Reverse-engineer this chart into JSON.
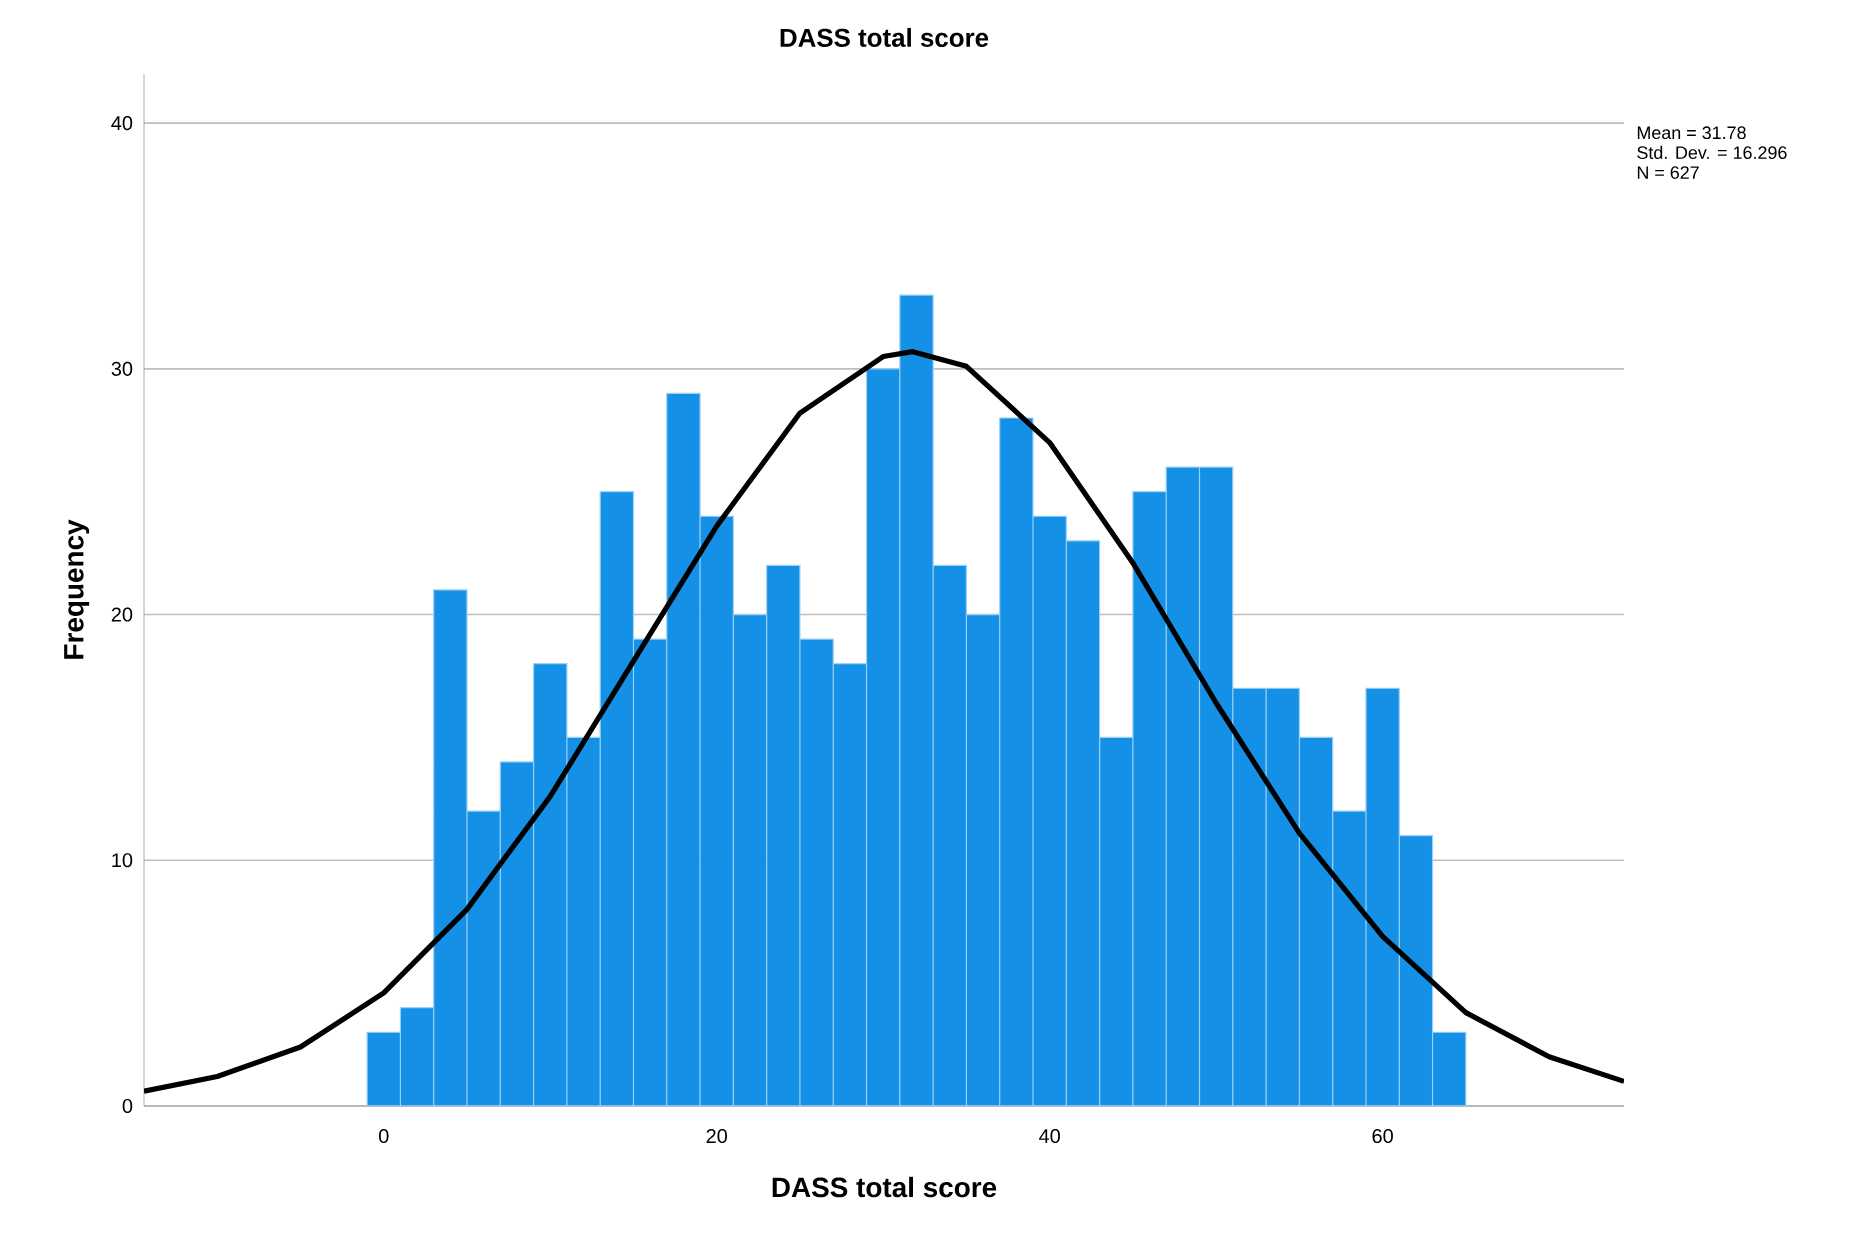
{
  "chart_data": {
    "type": "histogram",
    "title": "DASS total score",
    "xlabel": "DASS total score",
    "ylabel": "Frequency",
    "bins": [
      -1,
      1,
      3,
      5,
      7,
      9,
      11,
      13,
      15,
      17,
      19,
      21,
      23,
      25,
      27,
      29,
      31,
      33,
      35,
      37,
      39,
      41,
      43,
      45,
      47,
      49,
      51,
      53,
      55,
      57,
      59,
      61,
      63,
      65
    ],
    "values": [
      3,
      4,
      21,
      12,
      14,
      18,
      15,
      25,
      19,
      29,
      24,
      20,
      22,
      19,
      18,
      30,
      33,
      22,
      20,
      28,
      24,
      23,
      15,
      25,
      26,
      26,
      17,
      17,
      15,
      12,
      17,
      11,
      3
    ],
    "color": "#1490e6",
    "series": [
      {
        "type": "line",
        "color": "#000000",
        "x": [
          -14.4,
          -10,
          -5,
          0,
          5,
          10,
          15,
          20,
          25,
          30,
          31.78,
          35,
          40,
          45,
          50,
          55,
          60,
          65,
          70,
          74.5
        ],
        "values": [
          0.6,
          1.2,
          2.4,
          4.6,
          8.0,
          12.6,
          18.1,
          23.6,
          28.2,
          30.5,
          30.7,
          30.1,
          27.0,
          22.1,
          16.4,
          11.1,
          6.9,
          3.8,
          2.0,
          1.0
        ]
      }
    ],
    "xlim": [
      -14.4,
      74.5
    ],
    "ylim": [
      0,
      42
    ],
    "xticks": [
      0,
      20,
      40,
      60
    ],
    "yticks": [
      0,
      10,
      20,
      30,
      40
    ],
    "grid": "y",
    "annotations": [
      "Mean = 31.78",
      "Std. Dev. = 16.296",
      "N = 627"
    ]
  }
}
